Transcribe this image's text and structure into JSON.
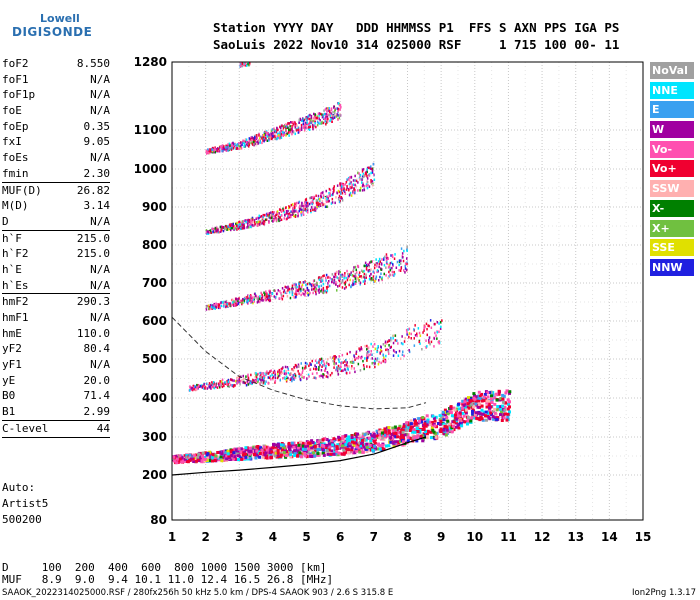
{
  "logo": {
    "brand_top": "Lowell",
    "brand_bottom": "DIGISONDE"
  },
  "header": {
    "line1": "Station YYYY DAY   DDD HHMMSS P1  FFS S AXN PPS IGA PS",
    "line2": "SaoLuis 2022 Nov10 314 025000 RSF     1 715 100 00- 11"
  },
  "params": [
    {
      "name": "foF2",
      "value": "8.550"
    },
    {
      "name": "foF1",
      "value": "N/A"
    },
    {
      "name": "foF1p",
      "value": "N/A"
    },
    {
      "name": "foE",
      "value": "N/A"
    },
    {
      "name": "foEp",
      "value": "0.35"
    },
    {
      "name": "fxI",
      "value": "9.05"
    },
    {
      "name": "foEs",
      "value": "N/A"
    },
    {
      "name": "fmin",
      "value": "2.30"
    },
    {
      "name": "MUF(D)",
      "value": "26.82"
    },
    {
      "name": "M(D)",
      "value": "3.14"
    },
    {
      "name": "D",
      "value": "N/A"
    },
    {
      "name": "h`F",
      "value": "215.0"
    },
    {
      "name": "h`F2",
      "value": "215.0"
    },
    {
      "name": "h`E",
      "value": "N/A"
    },
    {
      "name": "h`Es",
      "value": "N/A"
    },
    {
      "name": "hmF2",
      "value": "290.3"
    },
    {
      "name": "hmF1",
      "value": "N/A"
    },
    {
      "name": "hmE",
      "value": "110.0"
    },
    {
      "name": "yF2",
      "value": "80.4"
    },
    {
      "name": "yF1",
      "value": "N/A"
    },
    {
      "name": "yE",
      "value": "20.0"
    },
    {
      "name": "B0",
      "value": "71.4"
    },
    {
      "name": "B1",
      "value": "2.99"
    },
    {
      "name": "C-level",
      "value": "44"
    }
  ],
  "scaler": {
    "line1": "Auto:",
    "line2": "Artist5",
    "line3": "500200"
  },
  "legend": [
    {
      "label": "NoVal",
      "color": "#a0a0a0"
    },
    {
      "label": "NNE",
      "color": "#00e5ff"
    },
    {
      "label": "E",
      "color": "#3aa0f0"
    },
    {
      "label": "W",
      "color": "#a000a0"
    },
    {
      "label": "Vo-",
      "color": "#ff50b0"
    },
    {
      "label": "Vo+",
      "color": "#f00030"
    },
    {
      "label": "SSW",
      "color": "#ffb0b0"
    },
    {
      "label": "X-",
      "color": "#008000"
    },
    {
      "label": "X+",
      "color": "#70c040"
    },
    {
      "label": "SSE",
      "color": "#e0e000"
    },
    {
      "label": "NNW",
      "color": "#2020e0"
    }
  ],
  "muf_table": {
    "row1": "D     100  200  400  600  800 1000 1500 3000 [km]",
    "row2": "MUF   8.9  9.0  9.4 10.1 11.0 12.4 16.5 26.8 [MHz]"
  },
  "footer": {
    "left": "SAAOK_2022314025000.RSF / 280fx256h 50 kHz 5.0 km / DPS-4 SAAOK 903 / 2.6 S 315.8 E",
    "right": "Ion2Png 1.3.17"
  },
  "chart_data": {
    "type": "scatter",
    "xlim": [
      1,
      15
    ],
    "ylim": [
      80,
      1280
    ],
    "xticks": [
      1,
      2,
      3,
      4,
      5,
      6,
      7,
      8,
      9,
      10,
      11,
      12,
      13,
      14,
      15
    ],
    "yticks": [
      80,
      200,
      300,
      400,
      500,
      600,
      700,
      800,
      900,
      1000,
      1100,
      1280
    ],
    "grid": true,
    "traces": [
      {
        "name": "E-region trace",
        "x": [
          1.0,
          2.0,
          3.0,
          4.0,
          5.0,
          6.0,
          7.0,
          8.0,
          8.55
        ],
        "y": [
          200,
          207,
          213,
          220,
          228,
          238,
          255,
          285,
          300
        ]
      },
      {
        "name": "Profile",
        "x": [
          1.0,
          2.0,
          3.0,
          4.0,
          5.0,
          6.0,
          7.0,
          8.0,
          8.55
        ],
        "y": [
          610,
          520,
          455,
          420,
          395,
          380,
          372,
          375,
          388
        ]
      }
    ],
    "echo_bands": [
      {
        "hop": 1,
        "x": [
          1.0,
          2.0,
          3.0,
          4.0,
          5.0,
          6.0,
          7.0,
          8.0,
          9.0,
          10.0,
          11.0
        ],
        "y": [
          240,
          245,
          252,
          258,
          262,
          270,
          280,
          300,
          320,
          365,
          365
        ]
      },
      {
        "hop": 2,
        "x": [
          1.5,
          2.0,
          3.0,
          4.0,
          5.0,
          6.0,
          7.0,
          8.0,
          9.0
        ],
        "y": [
          425,
          430,
          440,
          450,
          462,
          475,
          498,
          528,
          560
        ]
      },
      {
        "hop": 3,
        "x": [
          2.0,
          3.0,
          4.0,
          5.0,
          6.0,
          7.0,
          8.0
        ],
        "y": [
          635,
          650,
          665,
          680,
          698,
          720,
          750
        ]
      },
      {
        "hop": 4,
        "x": [
          2.0,
          3.0,
          4.0,
          5.0,
          6.0,
          7.0
        ],
        "y": [
          835,
          850,
          870,
          895,
          930,
          975
        ]
      },
      {
        "hop": 5,
        "x": [
          2.0,
          3.0,
          4.0,
          5.0,
          6.0
        ],
        "y": [
          1045,
          1060,
          1085,
          1110,
          1145
        ]
      },
      {
        "hop": 6,
        "x": [
          3.0,
          3.3
        ],
        "y": [
          1272,
          1278
        ]
      }
    ]
  }
}
